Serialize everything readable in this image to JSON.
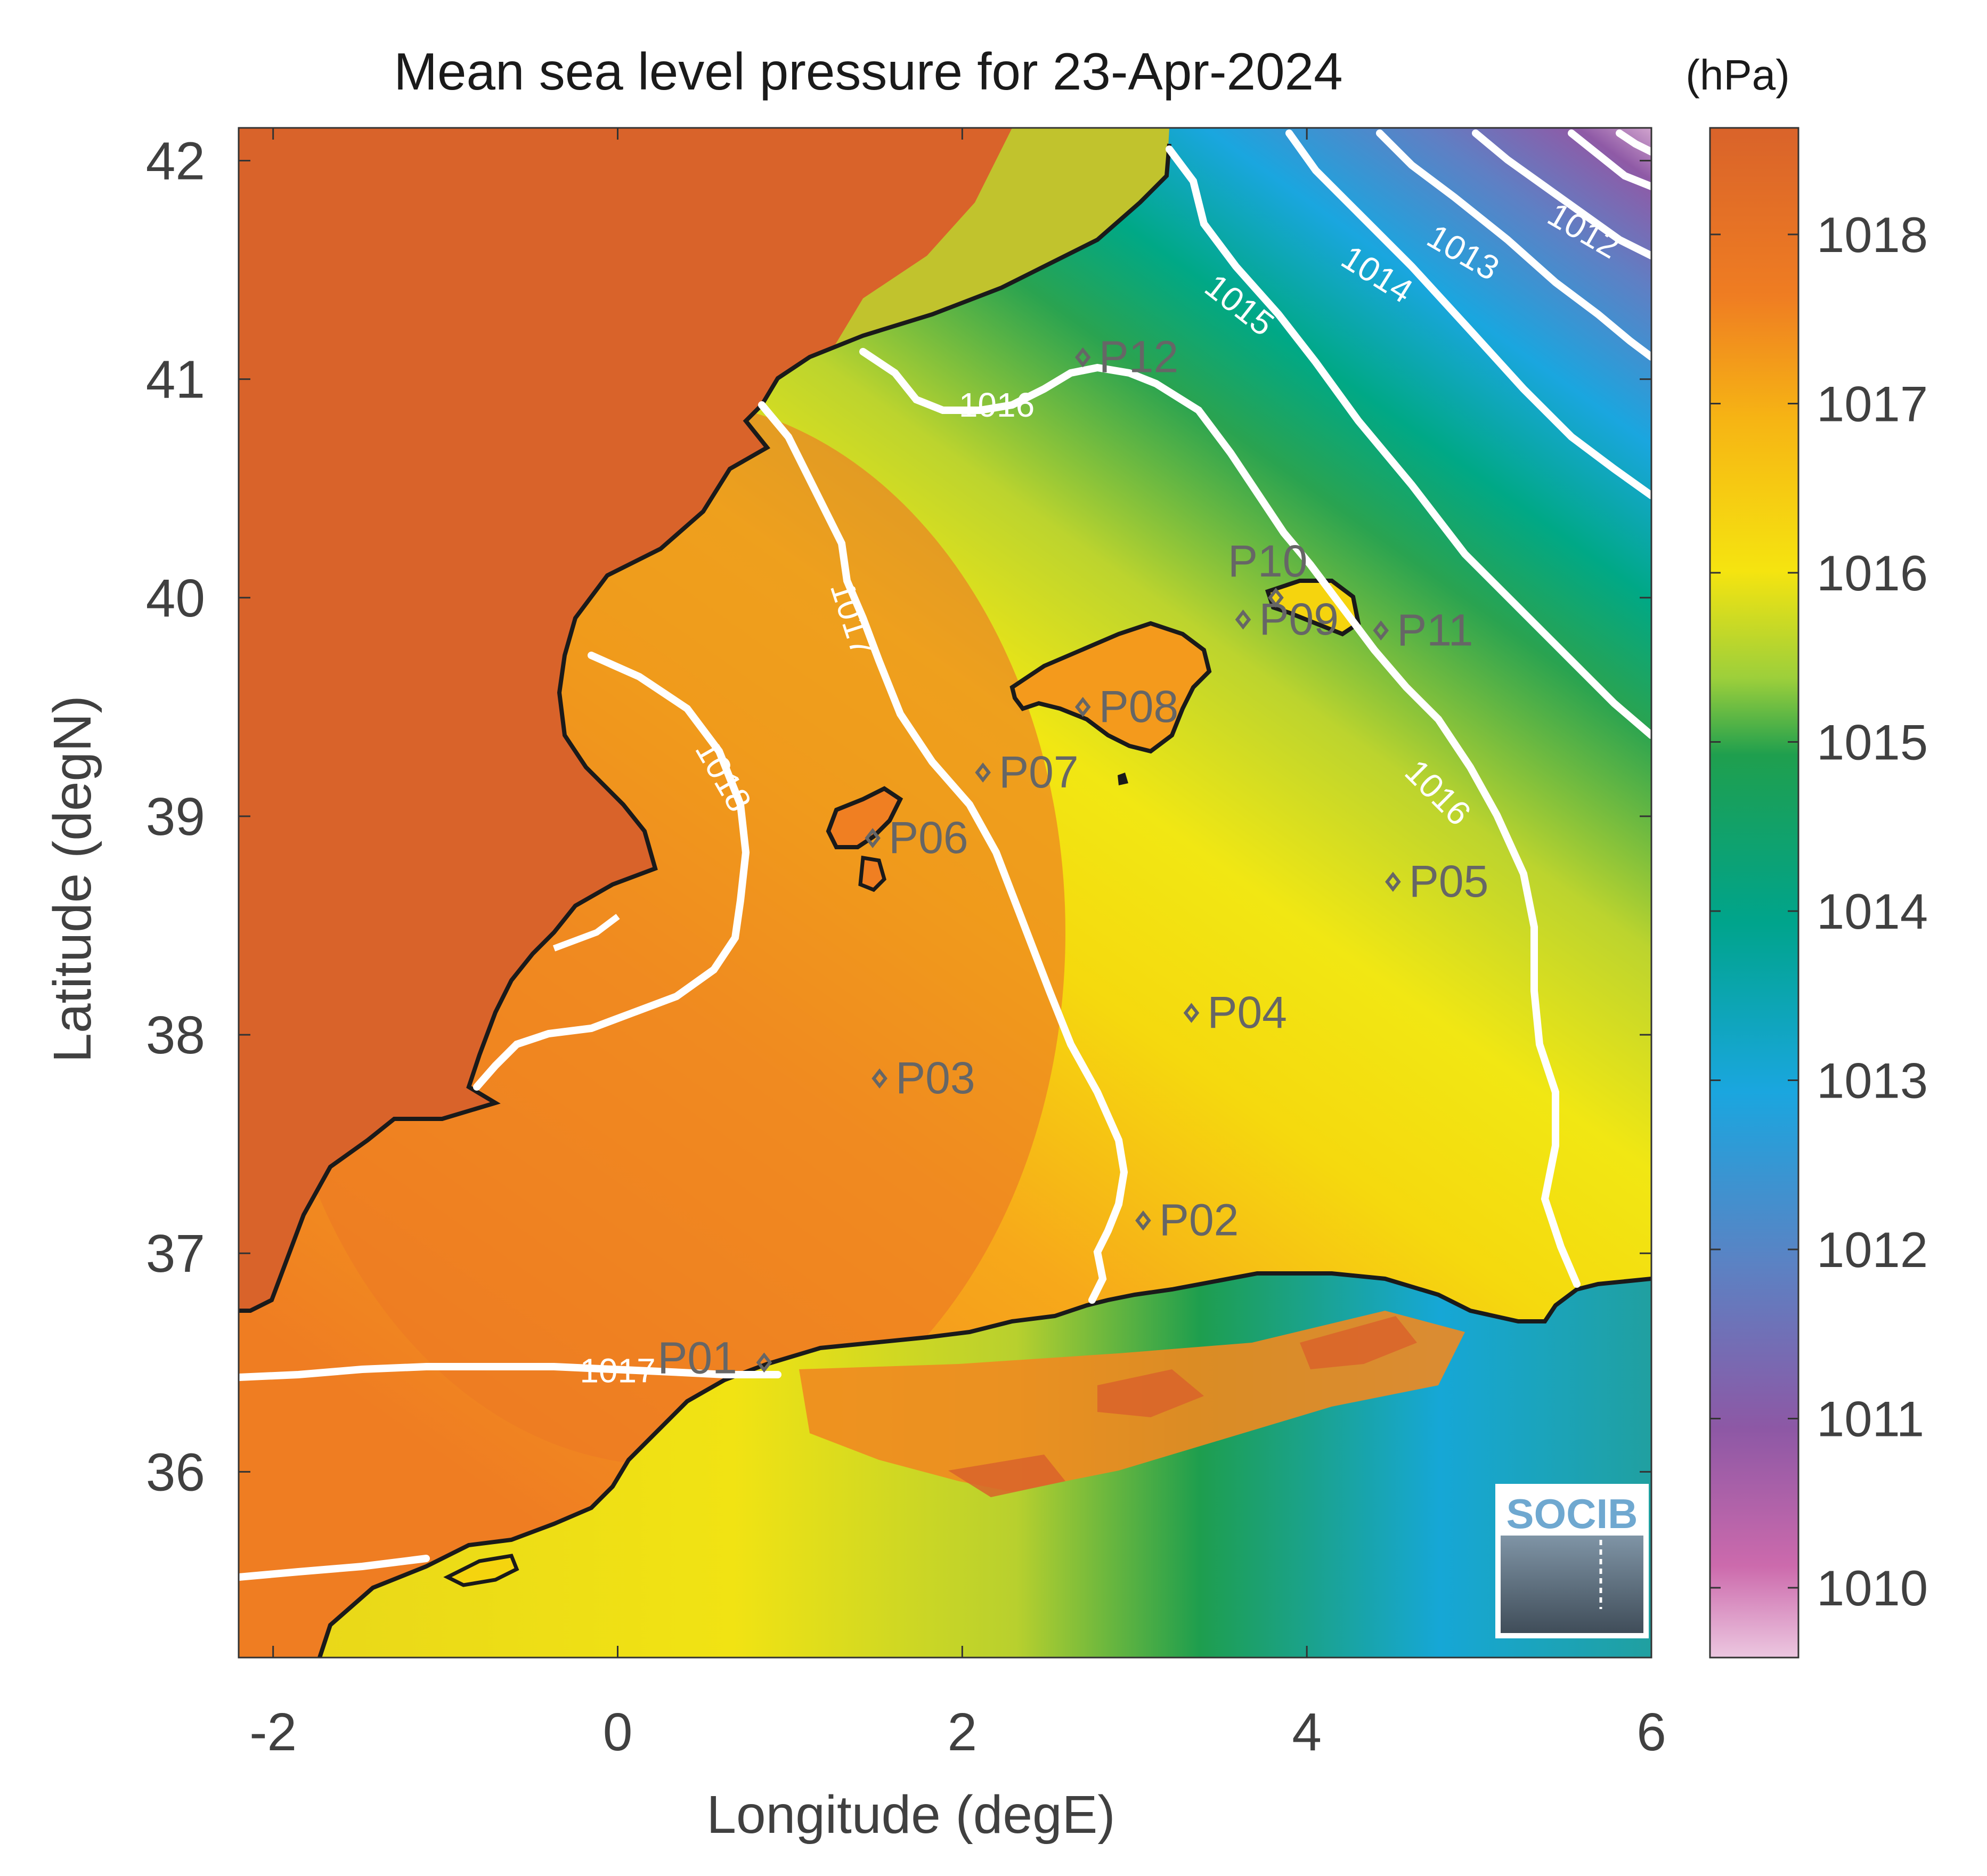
{
  "title": "Mean sea level pressure for 23-Apr-2024",
  "units": "(hPa)",
  "xlabel": "Longitude (degE)",
  "ylabel": "Latitude (degN)",
  "x_ticks": [
    "-2",
    "0",
    "2",
    "4",
    "6"
  ],
  "y_ticks": [
    "42",
    "41",
    "40",
    "39",
    "38",
    "37",
    "36"
  ],
  "colorbar_ticks": [
    "1018",
    "1017",
    "1016",
    "1015",
    "1014",
    "1013",
    "1012",
    "1011",
    "1010"
  ],
  "logo_text": "SOCIB",
  "contour_labels": [
    {
      "text": "1016",
      "lon": 2.2,
      "lat": 40.87
    },
    {
      "text": "1017",
      "lon": 1.35,
      "lat": 39.9
    },
    {
      "text": "1018",
      "lon": 0.6,
      "lat": 39.18
    },
    {
      "text": "1015",
      "lon": 3.6,
      "lat": 41.33
    },
    {
      "text": "1014",
      "lon": 4.4,
      "lat": 41.47
    },
    {
      "text": "1013",
      "lon": 4.9,
      "lat": 41.57
    },
    {
      "text": "1012",
      "lon": 5.6,
      "lat": 41.67
    },
    {
      "text": "1016",
      "lon": 4.75,
      "lat": 39.1
    },
    {
      "text": "1017",
      "lon": 0.0,
      "lat": 36.45
    }
  ],
  "stations": [
    {
      "id": "P01",
      "lon": 0.85,
      "lat": 36.5
    },
    {
      "id": "P02",
      "lon": 3.05,
      "lat": 37.15
    },
    {
      "id": "P03",
      "lon": 1.52,
      "lat": 37.8
    },
    {
      "id": "P04",
      "lon": 3.33,
      "lat": 38.1
    },
    {
      "id": "P05",
      "lon": 4.5,
      "lat": 38.7
    },
    {
      "id": "P06",
      "lon": 1.48,
      "lat": 38.9
    },
    {
      "id": "P07",
      "lon": 2.12,
      "lat": 39.2
    },
    {
      "id": "P08",
      "lon": 2.7,
      "lat": 39.5
    },
    {
      "id": "P09",
      "lon": 3.63,
      "lat": 39.9
    },
    {
      "id": "P10",
      "lon": 3.82,
      "lat": 40.0
    },
    {
      "id": "P11",
      "lon": 4.43,
      "lat": 39.85
    },
    {
      "id": "P12",
      "lon": 2.7,
      "lat": 41.1
    }
  ],
  "colors": {
    "land_high": "#d9632a",
    "orange": "#ef7d22",
    "yellow": "#f5e410",
    "green": "#2aa14a",
    "teal": "#00a68e",
    "blue": "#1fa6df",
    "purple": "#7d5aa8",
    "pink": "#e2b7d8",
    "contour": "#ffffff",
    "coast": "#1a1a1a",
    "station": "#666666",
    "text": "#404040"
  }
}
